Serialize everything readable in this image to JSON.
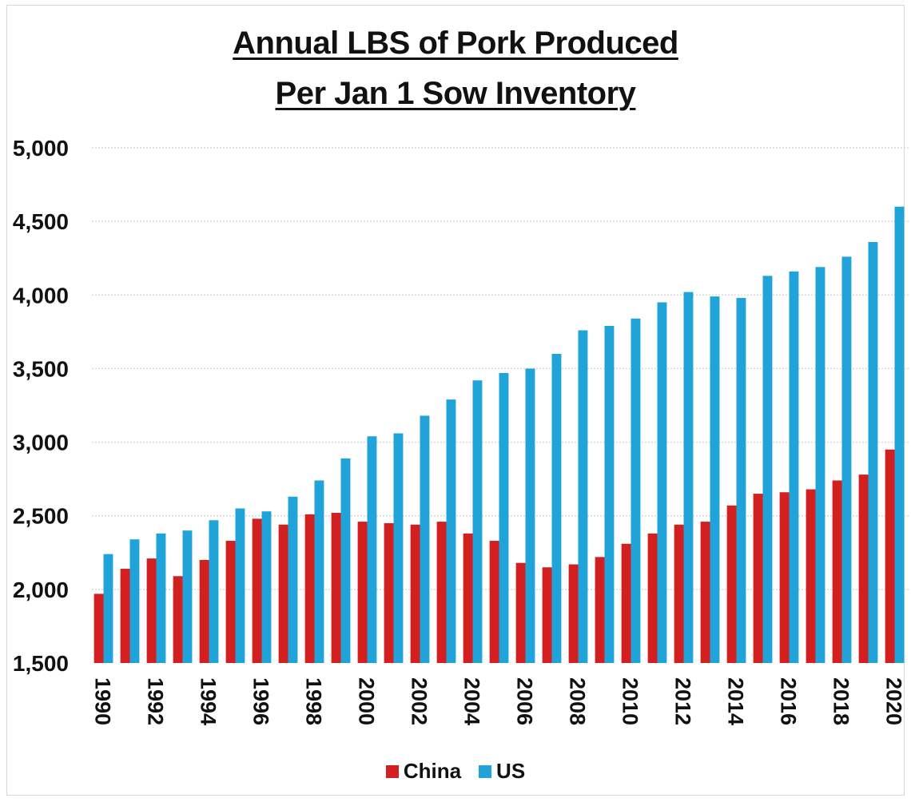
{
  "chart_data": {
    "type": "bar",
    "title": "Annual LBS of Pork Produced",
    "subtitle": "Per Jan 1 Sow Inventory",
    "xlabel": "",
    "ylabel": "",
    "ylim": [
      1500,
      5000
    ],
    "yticks": [
      1500,
      2000,
      2500,
      3000,
      3500,
      4000,
      4500,
      5000
    ],
    "ytick_labels": [
      "1,500",
      "2,000",
      "2,500",
      "3,000",
      "3,500",
      "4,000",
      "4,500",
      "5,000"
    ],
    "categories": [
      "1990",
      "1991",
      "1992",
      "1993",
      "1994",
      "1995",
      "1996",
      "1997",
      "1998",
      "1999",
      "2000",
      "2001",
      "2002",
      "2003",
      "2004",
      "2005",
      "2006",
      "2007",
      "2008",
      "2009",
      "2010",
      "2011",
      "2012",
      "2013",
      "2014",
      "2015",
      "2016",
      "2017",
      "2018",
      "2019",
      "2020"
    ],
    "xtick_labels": [
      "1990",
      "1992",
      "1994",
      "1996",
      "1998",
      "2000",
      "2002",
      "2004",
      "2006",
      "2008",
      "2010",
      "2012",
      "2014",
      "2016",
      "2018",
      "2020"
    ],
    "series": [
      {
        "name": "China",
        "color": "#d21f1f",
        "values": [
          1970,
          2140,
          2210,
          2090,
          2200,
          2330,
          2480,
          2440,
          2510,
          2520,
          2460,
          2450,
          2440,
          2460,
          2380,
          2330,
          2180,
          2150,
          2170,
          2220,
          2310,
          2380,
          2440,
          2460,
          2570,
          2650,
          2660,
          2680,
          2740,
          2780,
          2950
        ]
      },
      {
        "name": "US",
        "color": "#1fa3d8",
        "values": [
          2240,
          2340,
          2380,
          2400,
          2470,
          2550,
          2530,
          2630,
          2740,
          2890,
          3040,
          3060,
          3180,
          3290,
          3420,
          3470,
          3500,
          3600,
          3760,
          3790,
          3840,
          3950,
          4020,
          3990,
          3980,
          4130,
          4160,
          4190,
          4260,
          4360,
          4600
        ]
      }
    ],
    "grid": true,
    "legend_position": "bottom"
  }
}
